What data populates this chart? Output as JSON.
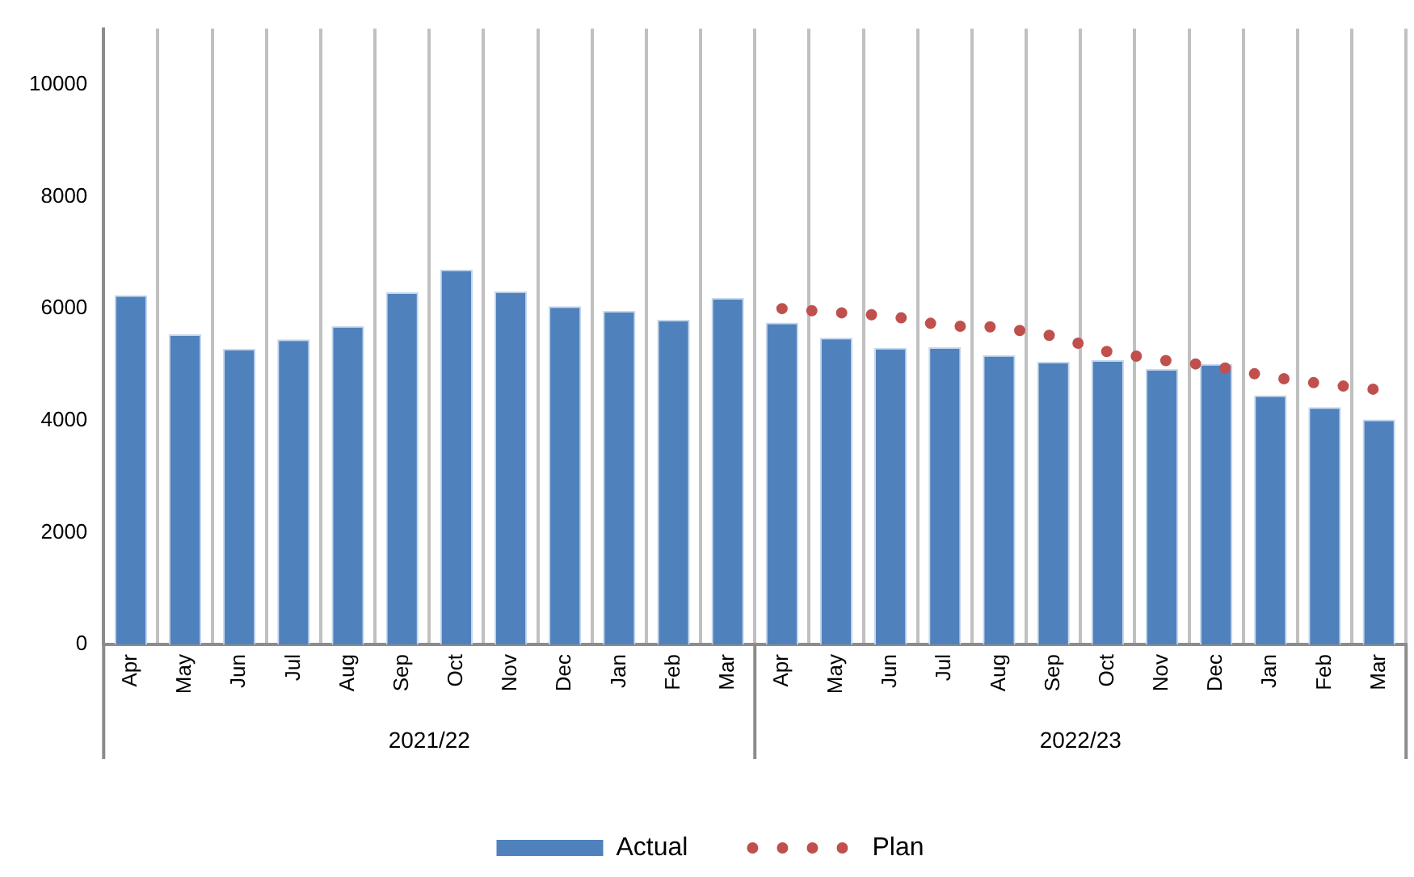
{
  "chart_data": {
    "type": "bar",
    "categories": [
      "Apr",
      "May",
      "Jun",
      "Jul",
      "Aug",
      "Sep",
      "Oct",
      "Nov",
      "Dec",
      "Jan",
      "Feb",
      "Mar",
      "Apr",
      "May",
      "Jun",
      "Jul",
      "Aug",
      "Sep",
      "Oct",
      "Nov",
      "Dec",
      "Jan",
      "Feb",
      "Mar"
    ],
    "series": [
      {
        "name": "Actual",
        "color": "#4f81bd",
        "values": [
          6240,
          5540,
          5280,
          5450,
          5690,
          6290,
          6700,
          6310,
          6040,
          5960,
          5800,
          6190,
          5750,
          5480,
          5300,
          5310,
          5170,
          5050,
          5080,
          4920,
          5010,
          4450,
          4240,
          4020
        ]
      },
      {
        "name": "Plan",
        "type": "line",
        "color": "#c0504d",
        "line_style": "dotted",
        "marker": "none",
        "values": [
          null,
          null,
          null,
          null,
          null,
          null,
          null,
          null,
          null,
          null,
          null,
          null,
          6000,
          5930,
          5870,
          5690,
          5670,
          5510,
          5230,
          5080,
          4970,
          4780,
          4650,
          4550
        ]
      }
    ],
    "annotations": [
      "2021/22",
      "2022/23"
    ],
    "ylim": [
      0,
      11000
    ],
    "yticks": [
      0,
      2000,
      4000,
      6000,
      8000,
      10000
    ],
    "grid": "x",
    "legend": "bottom"
  }
}
